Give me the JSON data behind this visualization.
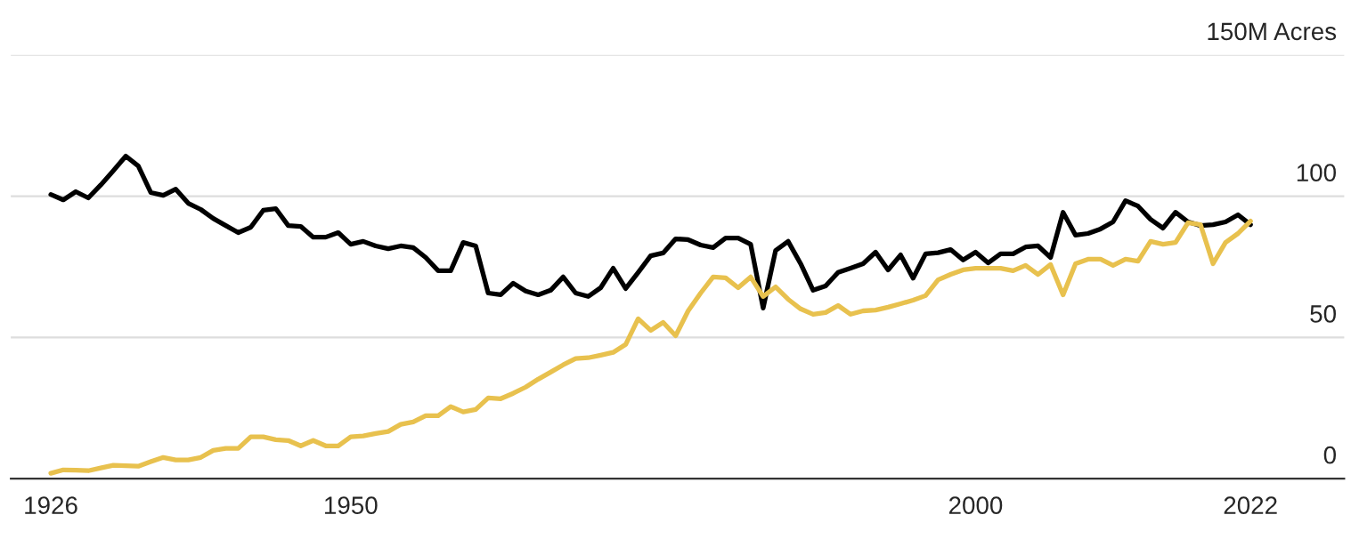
{
  "chart_data": {
    "type": "line",
    "x": [
      1926,
      1927,
      1928,
      1929,
      1930,
      1931,
      1932,
      1933,
      1934,
      1935,
      1936,
      1937,
      1938,
      1939,
      1940,
      1941,
      1942,
      1943,
      1944,
      1945,
      1946,
      1947,
      1948,
      1949,
      1950,
      1951,
      1952,
      1953,
      1954,
      1955,
      1956,
      1957,
      1958,
      1959,
      1960,
      1961,
      1962,
      1963,
      1964,
      1965,
      1966,
      1967,
      1968,
      1969,
      1970,
      1971,
      1972,
      1973,
      1974,
      1975,
      1976,
      1977,
      1978,
      1979,
      1980,
      1981,
      1982,
      1983,
      1984,
      1985,
      1986,
      1987,
      1988,
      1989,
      1990,
      1991,
      1992,
      1993,
      1994,
      1995,
      1996,
      1997,
      1998,
      1999,
      2000,
      2001,
      2002,
      2003,
      2004,
      2005,
      2006,
      2007,
      2008,
      2009,
      2010,
      2011,
      2012,
      2013,
      2014,
      2015,
      2016,
      2017,
      2018,
      2019,
      2020,
      2021,
      2022
    ],
    "series": [
      {
        "color": "#000000",
        "values": [
          100.6,
          98.7,
          101.6,
          99.4,
          104,
          109,
          114.2,
          110.7,
          101.3,
          100.3,
          102.5,
          97.5,
          95.3,
          92.1,
          89.6,
          87.1,
          89,
          95,
          95.6,
          89.6,
          89.3,
          85.5,
          85.5,
          87.1,
          83,
          84,
          82.4,
          81.4,
          82.4,
          81.8,
          78.3,
          73.6,
          73.6,
          83.6,
          82.4,
          65.7,
          65.1,
          69.2,
          66.4,
          65.1,
          66.7,
          71.4,
          65.7,
          64.5,
          67.6,
          74.5,
          67.3,
          73,
          78.9,
          79.9,
          84.9,
          84.6,
          82.7,
          81.8,
          85.2,
          85.2,
          83,
          60.4,
          80.8,
          84,
          76.1,
          66.7,
          68.2,
          73,
          74.5,
          76.1,
          80.2,
          73.9,
          79.2,
          71,
          79.6,
          80,
          81.1,
          77.4,
          80.2,
          76.4,
          79.6,
          79.6,
          82,
          82.4,
          78.3,
          94.3,
          86.2,
          86.8,
          88.4,
          90.9,
          98.4,
          96.5,
          91.8,
          88.7,
          94.3,
          90.9,
          89.6,
          89.9,
          90.9,
          93.4,
          89.9
        ]
      },
      {
        "color": "#e8c14e",
        "values": [
          1.9,
          3.1,
          3,
          2.8,
          3.8,
          4.7,
          4.6,
          4.4,
          6,
          7.5,
          6.6,
          6.6,
          7.5,
          10,
          10.7,
          10.7,
          14.8,
          14.8,
          13.8,
          13.5,
          11.6,
          13.5,
          11.6,
          11.6,
          14.8,
          15.1,
          16,
          16.7,
          19.2,
          20.1,
          22.3,
          22.3,
          25.5,
          23.6,
          24.5,
          28.6,
          28.3,
          30.2,
          32.4,
          35.2,
          37.7,
          40.3,
          42.5,
          42.8,
          43.7,
          44.7,
          47.5,
          56.6,
          52.5,
          55.3,
          50.6,
          59.4,
          65.7,
          71.4,
          71.1,
          67.6,
          71.4,
          64.5,
          67.9,
          63.5,
          60.1,
          58.2,
          58.8,
          61.3,
          58.2,
          59.4,
          59.7,
          60.7,
          61.9,
          63.2,
          64.8,
          70.4,
          72.3,
          73.9,
          74.5,
          74.5,
          74.5,
          73.6,
          75.5,
          72.3,
          75.8,
          65.1,
          76.1,
          77.7,
          77.7,
          75.5,
          77.7,
          77,
          84,
          83,
          83.6,
          90.6,
          89.9,
          76.1,
          83.6,
          86.8,
          91.2
        ]
      }
    ],
    "xlim": [
      1922.8,
      2029.5
    ],
    "xticks": [
      1926,
      1950,
      2000,
      2022
    ],
    "ylim": [
      0,
      150
    ],
    "yticks": [
      0,
      50,
      100,
      {
        "value": 150,
        "label": "150M Acres"
      }
    ],
    "grid": "y",
    "line_style": "solid"
  }
}
